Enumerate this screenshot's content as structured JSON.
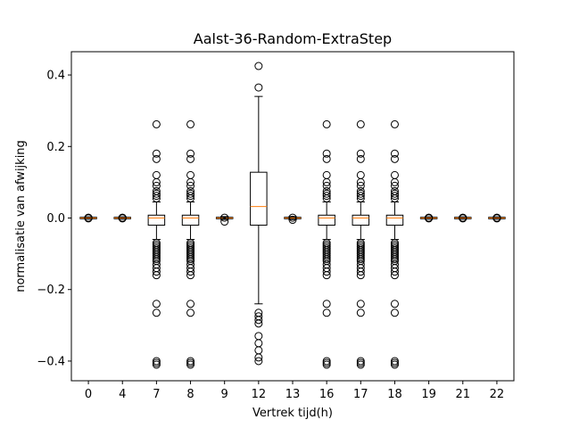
{
  "chart_data": {
    "type": "boxplot",
    "title": "Aalst-36-Random-ExtraStep",
    "xlabel": "Vertrek tijd(h)",
    "ylabel": "normalisatie van afwijking",
    "ylim": [
      -0.455,
      0.465
    ],
    "yticks": [
      -0.4,
      -0.2,
      0.0,
      0.2,
      0.4
    ],
    "ytick_labels": [
      "−0.4",
      "−0.2",
      "0.0",
      "0.2",
      "0.4"
    ],
    "grid": false,
    "colors": {
      "box": "#000000",
      "median": "#ff7f0e",
      "flier": "#000000"
    },
    "categories": [
      "0",
      "4",
      "7",
      "8",
      "9",
      "12",
      "13",
      "16",
      "17",
      "18",
      "19",
      "21",
      "22"
    ],
    "boxes": [
      {
        "category": "0",
        "q1": -0.002,
        "median": 0.0,
        "q3": 0.002,
        "whisker_low": -0.003,
        "whisker_high": 0.003,
        "fliers": [
          -0.001,
          0.001
        ]
      },
      {
        "category": "4",
        "q1": -0.002,
        "median": 0.0,
        "q3": 0.002,
        "whisker_low": -0.003,
        "whisker_high": 0.003,
        "fliers": [
          -0.001,
          0.001
        ]
      },
      {
        "category": "7",
        "q1": -0.02,
        "median": 0.0,
        "q3": 0.008,
        "whisker_low": -0.06,
        "whisker_high": 0.045,
        "fliers": [
          0.262,
          0.18,
          0.165,
          0.12,
          0.1,
          0.09,
          0.075,
          0.068,
          0.062,
          0.055,
          -0.07,
          -0.075,
          -0.08,
          -0.085,
          -0.09,
          -0.095,
          -0.1,
          -0.105,
          -0.11,
          -0.115,
          -0.12,
          -0.13,
          -0.14,
          -0.15,
          -0.16,
          -0.24,
          -0.265,
          -0.4,
          -0.405,
          -0.41
        ]
      },
      {
        "category": "8",
        "q1": -0.02,
        "median": 0.0,
        "q3": 0.008,
        "whisker_low": -0.06,
        "whisker_high": 0.045,
        "fliers": [
          0.262,
          0.18,
          0.165,
          0.12,
          0.1,
          0.09,
          0.075,
          0.068,
          0.062,
          0.055,
          -0.07,
          -0.075,
          -0.08,
          -0.085,
          -0.09,
          -0.095,
          -0.1,
          -0.105,
          -0.11,
          -0.115,
          -0.12,
          -0.13,
          -0.14,
          -0.15,
          -0.16,
          -0.24,
          -0.265,
          -0.4,
          -0.405,
          -0.41
        ]
      },
      {
        "category": "9",
        "q1": -0.002,
        "median": 0.0,
        "q3": 0.002,
        "whisker_low": -0.004,
        "whisker_high": 0.004,
        "fliers": [
          -0.01,
          0.001
        ]
      },
      {
        "category": "12",
        "q1": -0.02,
        "median": 0.032,
        "q3": 0.128,
        "whisker_low": -0.24,
        "whisker_high": 0.34,
        "fliers": [
          0.425,
          0.365,
          -0.265,
          -0.275,
          -0.285,
          -0.295,
          -0.33,
          -0.35,
          -0.37,
          -0.39,
          -0.4
        ]
      },
      {
        "category": "13",
        "q1": -0.002,
        "median": 0.0,
        "q3": 0.002,
        "whisker_low": -0.004,
        "whisker_high": 0.004,
        "fliers": [
          -0.005,
          0.001
        ]
      },
      {
        "category": "16",
        "q1": -0.02,
        "median": 0.0,
        "q3": 0.008,
        "whisker_low": -0.06,
        "whisker_high": 0.045,
        "fliers": [
          0.262,
          0.18,
          0.165,
          0.12,
          0.1,
          0.09,
          0.075,
          0.068,
          0.062,
          0.055,
          -0.07,
          -0.075,
          -0.08,
          -0.085,
          -0.09,
          -0.095,
          -0.1,
          -0.105,
          -0.11,
          -0.115,
          -0.12,
          -0.13,
          -0.14,
          -0.15,
          -0.16,
          -0.24,
          -0.265,
          -0.4,
          -0.405,
          -0.41
        ]
      },
      {
        "category": "17",
        "q1": -0.02,
        "median": 0.0,
        "q3": 0.008,
        "whisker_low": -0.06,
        "whisker_high": 0.045,
        "fliers": [
          0.262,
          0.18,
          0.165,
          0.12,
          0.1,
          0.09,
          0.075,
          0.068,
          0.062,
          0.055,
          -0.07,
          -0.075,
          -0.08,
          -0.085,
          -0.09,
          -0.095,
          -0.1,
          -0.105,
          -0.11,
          -0.115,
          -0.12,
          -0.13,
          -0.14,
          -0.15,
          -0.16,
          -0.24,
          -0.265,
          -0.4,
          -0.405,
          -0.41
        ]
      },
      {
        "category": "18",
        "q1": -0.02,
        "median": 0.0,
        "q3": 0.008,
        "whisker_low": -0.06,
        "whisker_high": 0.045,
        "fliers": [
          0.262,
          0.18,
          0.165,
          0.12,
          0.1,
          0.09,
          0.075,
          0.068,
          0.062,
          0.055,
          -0.07,
          -0.075,
          -0.08,
          -0.085,
          -0.09,
          -0.095,
          -0.1,
          -0.105,
          -0.11,
          -0.115,
          -0.12,
          -0.13,
          -0.14,
          -0.15,
          -0.16,
          -0.24,
          -0.265,
          -0.4,
          -0.405,
          -0.41
        ]
      },
      {
        "category": "19",
        "q1": -0.002,
        "median": 0.0,
        "q3": 0.002,
        "whisker_low": -0.003,
        "whisker_high": 0.003,
        "fliers": [
          -0.001,
          0.001
        ]
      },
      {
        "category": "21",
        "q1": -0.002,
        "median": 0.0,
        "q3": 0.002,
        "whisker_low": -0.003,
        "whisker_high": 0.003,
        "fliers": [
          -0.001,
          0.001
        ]
      },
      {
        "category": "22",
        "q1": -0.002,
        "median": 0.0,
        "q3": 0.002,
        "whisker_low": -0.003,
        "whisker_high": 0.003,
        "fliers": [
          -0.001,
          0.001
        ]
      }
    ]
  }
}
